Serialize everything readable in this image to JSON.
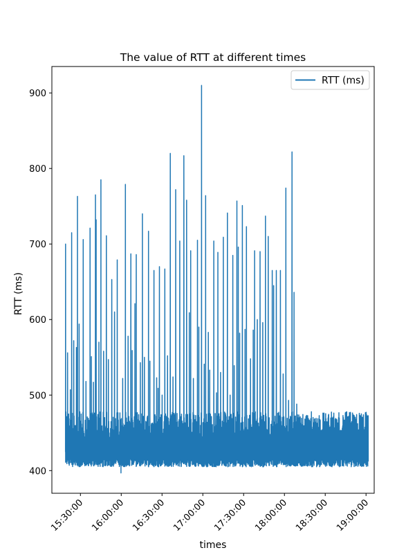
{
  "chart_data": {
    "type": "line",
    "title": "The value of RTT at different times",
    "xlabel": "times",
    "ylabel": "RTT (ms)",
    "x_tick_labels": [
      "15:30:00",
      "16:00:00",
      "16:30:00",
      "17:00:00",
      "17:30:00",
      "18:00:00",
      "18:30:00",
      "19:00:00"
    ],
    "x_ticks_minutes": [
      930,
      960,
      990,
      1020,
      1050,
      1080,
      1110,
      1140
    ],
    "xlim_minutes": [
      909,
      1146
    ],
    "y_ticks": [
      400,
      500,
      600,
      700,
      800,
      900
    ],
    "ylim": [
      370,
      935
    ],
    "legend": {
      "position": "top-right",
      "entries": [
        "RTT (ms)"
      ]
    },
    "grid": false,
    "series": [
      {
        "name": "RTT (ms)",
        "color": "#1f77b4",
        "baseline_min": 405,
        "baseline_max": 478,
        "x_start_minutes": 919.0,
        "x_end_minutes": 1141.5,
        "spikes": [
          [
            919.0,
            700
          ],
          [
            920.5,
            556
          ],
          [
            922.5,
            507
          ],
          [
            923.5,
            715
          ],
          [
            925,
            572
          ],
          [
            927,
            563
          ],
          [
            927.8,
            763
          ],
          [
            929,
            594
          ],
          [
            932,
            706
          ],
          [
            934,
            518
          ],
          [
            937,
            721
          ],
          [
            938,
            551
          ],
          [
            939.5,
            517
          ],
          [
            941,
            765
          ],
          [
            941.5,
            732
          ],
          [
            943.5,
            570
          ],
          [
            945,
            785
          ],
          [
            947,
            558
          ],
          [
            949,
            711
          ],
          [
            950.5,
            547
          ],
          [
            953,
            653
          ],
          [
            955,
            610
          ],
          [
            957,
            679
          ],
          [
            961,
            522
          ],
          [
            963,
            779
          ],
          [
            965,
            578
          ],
          [
            967,
            687
          ],
          [
            968,
            559
          ],
          [
            970,
            621
          ],
          [
            971,
            686
          ],
          [
            974,
            543
          ],
          [
            975.5,
            740
          ],
          [
            977,
            550
          ],
          [
            980,
            717
          ],
          [
            981,
            545
          ],
          [
            984,
            665
          ],
          [
            986,
            523
          ],
          [
            987,
            509
          ],
          [
            988,
            670
          ],
          [
            990,
            500
          ],
          [
            992,
            667
          ],
          [
            994,
            552
          ],
          [
            996,
            820
          ],
          [
            998,
            524
          ],
          [
            1000,
            772
          ],
          [
            1003,
            704
          ],
          [
            1006,
            817
          ],
          [
            1008,
            758
          ],
          [
            1010,
            609
          ],
          [
            1011,
            691
          ],
          [
            1013,
            522
          ],
          [
            1016,
            705
          ],
          [
            1017,
            590
          ],
          [
            1019,
            910
          ],
          [
            1021,
            541
          ],
          [
            1022,
            764
          ],
          [
            1024,
            583
          ],
          [
            1025,
            533
          ],
          [
            1028,
            704
          ],
          [
            1030,
            503
          ],
          [
            1031,
            689
          ],
          [
            1033,
            530
          ],
          [
            1035,
            709
          ],
          [
            1038,
            741
          ],
          [
            1040,
            500
          ],
          [
            1042,
            685
          ],
          [
            1043,
            539
          ],
          [
            1045,
            757
          ],
          [
            1046,
            696
          ],
          [
            1047,
            582
          ],
          [
            1049,
            751
          ],
          [
            1051,
            587
          ],
          [
            1052,
            723
          ],
          [
            1055,
            548
          ],
          [
            1057,
            586
          ],
          [
            1058,
            691
          ],
          [
            1060,
            600
          ],
          [
            1062,
            690
          ],
          [
            1064,
            596
          ],
          [
            1066,
            737
          ],
          [
            1068,
            710
          ],
          [
            1071,
            665
          ],
          [
            1072,
            645
          ],
          [
            1074,
            665
          ],
          [
            1077,
            665
          ],
          [
            1079,
            528
          ],
          [
            1081,
            774
          ],
          [
            1083,
            493
          ],
          [
            1085.5,
            822
          ],
          [
            1087,
            636
          ],
          [
            1089,
            488
          ]
        ]
      }
    ]
  }
}
